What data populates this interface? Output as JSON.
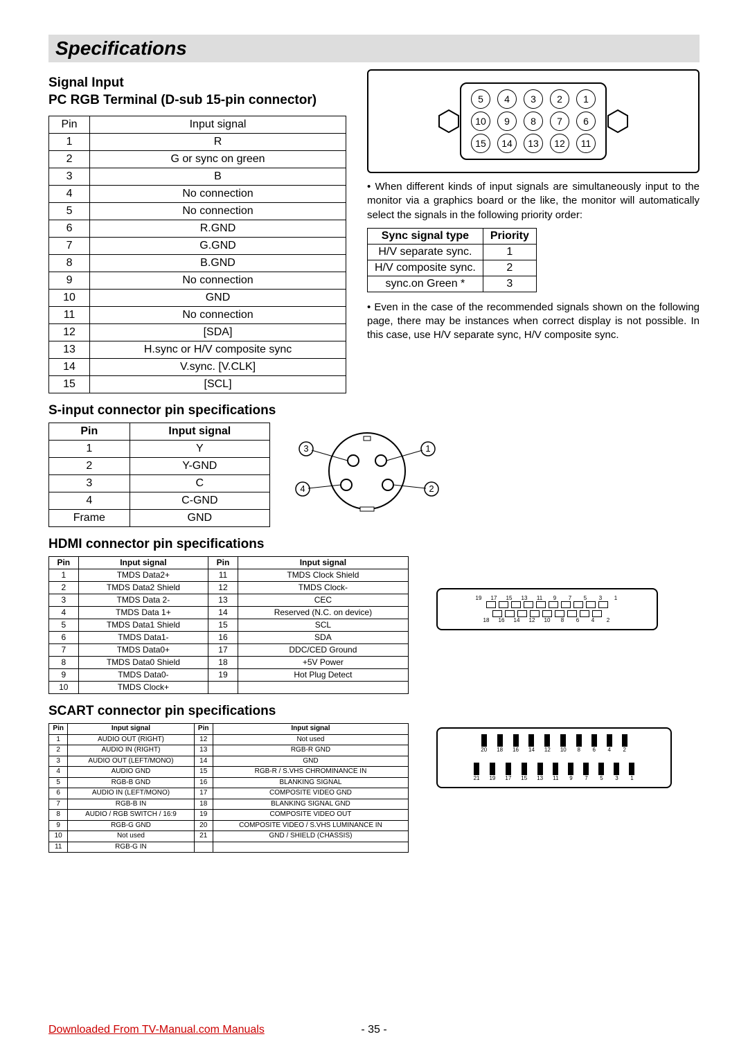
{
  "title": "Specifications",
  "section1": {
    "heading_line1": "Signal Input",
    "heading_line2": "PC RGB Terminal (D-sub 15-pin connector)",
    "table": {
      "headers": [
        "Pin",
        "Input signal"
      ],
      "rows": [
        [
          "1",
          "R"
        ],
        [
          "2",
          "G or sync on green"
        ],
        [
          "3",
          "B"
        ],
        [
          "4",
          "No connection"
        ],
        [
          "5",
          "No connection"
        ],
        [
          "6",
          "R.GND"
        ],
        [
          "7",
          "G.GND"
        ],
        [
          "8",
          "B.GND"
        ],
        [
          "9",
          "No connection"
        ],
        [
          "10",
          "GND"
        ],
        [
          "11",
          "No connection"
        ],
        [
          "12",
          "[SDA]"
        ],
        [
          "13",
          "H.sync or H/V composite sync"
        ],
        [
          "14",
          "V.sync. [V.CLK]"
        ],
        [
          "15",
          "[SCL]"
        ]
      ]
    },
    "dsub_pins": {
      "row1": [
        "5",
        "4",
        "3",
        "2",
        "1"
      ],
      "row2": [
        "10",
        "9",
        "8",
        "7",
        "6"
      ],
      "row3": [
        "15",
        "14",
        "13",
        "12",
        "11"
      ]
    }
  },
  "notes": {
    "note1": "When different kinds of input signals are simultaneously input to the monitor via a graphics board or the like, the monitor will automatically select the signals in the following priority order:",
    "note2": "Even in the case of the recommended signals shown on the following page, there may be instances when correct display is not possible. In this case, use H/V separate sync, H/V composite sync."
  },
  "priority_table": {
    "headers": [
      "Sync signal type",
      "Priority"
    ],
    "rows": [
      [
        "H/V separate sync.",
        "1"
      ],
      [
        "H/V composite sync.",
        "2"
      ],
      [
        "sync.on Green *",
        "3"
      ]
    ]
  },
  "section2": {
    "heading": "S-input connector pin specifications",
    "table": {
      "headers": [
        "Pin",
        "Input signal"
      ],
      "rows": [
        [
          "1",
          "Y"
        ],
        [
          "2",
          "Y-GND"
        ],
        [
          "3",
          "C"
        ],
        [
          "4",
          "C-GND"
        ],
        [
          "Frame",
          "GND"
        ]
      ]
    },
    "svideo_labels": [
      "1",
      "2",
      "3",
      "4"
    ]
  },
  "section3": {
    "heading": "HDMI connector pin specifications",
    "table": {
      "headers": [
        "Pin",
        "Input signal",
        "Pin",
        "Input signal"
      ],
      "rows": [
        [
          "1",
          "TMDS Data2+",
          "11",
          "TMDS Clock Shield"
        ],
        [
          "2",
          "TMDS Data2 Shield",
          "12",
          "TMDS Clock-"
        ],
        [
          "3",
          "TMDS Data 2-",
          "13",
          "CEC"
        ],
        [
          "4",
          "TMDS Data 1+",
          "14",
          "Reserved (N.C. on device)"
        ],
        [
          "5",
          "TMDS Data1 Shield",
          "15",
          "SCL"
        ],
        [
          "6",
          "TMDS Data1-",
          "16",
          "SDA"
        ],
        [
          "7",
          "TMDS Data0+",
          "17",
          "DDC/CED Ground"
        ],
        [
          "8",
          "TMDS Data0 Shield",
          "18",
          "+5V Power"
        ],
        [
          "9",
          "TMDS Data0-",
          "19",
          "Hot Plug Detect"
        ],
        [
          "10",
          "TMDS Clock+",
          "",
          ""
        ]
      ]
    },
    "hdmi_top": [
      "19",
      "17",
      "15",
      "13",
      "11",
      "9",
      "7",
      "5",
      "3",
      "1"
    ],
    "hdmi_bot": [
      "18",
      "16",
      "14",
      "12",
      "10",
      "8",
      "6",
      "4",
      "2"
    ]
  },
  "section4": {
    "heading": "SCART connector pin specifications",
    "table": {
      "headers": [
        "Pin",
        "Input signal",
        "Pin",
        "Input signal"
      ],
      "rows": [
        [
          "1",
          "AUDIO OUT (RIGHT)",
          "12",
          "Not used"
        ],
        [
          "2",
          "AUDIO IN (RIGHT)",
          "13",
          "RGB-R GND"
        ],
        [
          "3",
          "AUDIO OUT (LEFT/MONO)",
          "14",
          "GND"
        ],
        [
          "4",
          "AUDIO GND",
          "15",
          "RGB-R / S.VHS CHROMINANCE IN"
        ],
        [
          "5",
          "RGB-B GND",
          "16",
          "BLANKING SIGNAL"
        ],
        [
          "6",
          "AUDIO IN (LEFT/MONO)",
          "17",
          "COMPOSITE VIDEO GND"
        ],
        [
          "7",
          "RGB-B IN",
          "18",
          "BLANKING SIGNAL GND"
        ],
        [
          "8",
          "AUDIO / RGB SWITCH / 16:9",
          "19",
          "COMPOSITE VIDEO OUT"
        ],
        [
          "9",
          "RGB-G GND",
          "20",
          "COMPOSITE VIDEO / S.VHS LUMINANCE IN"
        ],
        [
          "10",
          "Not used",
          "21",
          "GND / SHIELD (CHASSIS)"
        ],
        [
          "11",
          "RGB-G IN",
          "",
          ""
        ]
      ]
    },
    "scart_top": [
      "20",
      "18",
      "16",
      "14",
      "12",
      "10",
      "8",
      "6",
      "4",
      "2"
    ],
    "scart_bot": [
      "21",
      "19",
      "17",
      "15",
      "13",
      "11",
      "9",
      "7",
      "5",
      "3",
      "1"
    ]
  },
  "footer": {
    "link": "Downloaded From TV-Manual.com Manuals",
    "page": "- 35 -"
  },
  "colors": {
    "title_bg": "#dddddd",
    "link_color": "#cc0000",
    "border": "#000000",
    "bg": "#ffffff"
  }
}
